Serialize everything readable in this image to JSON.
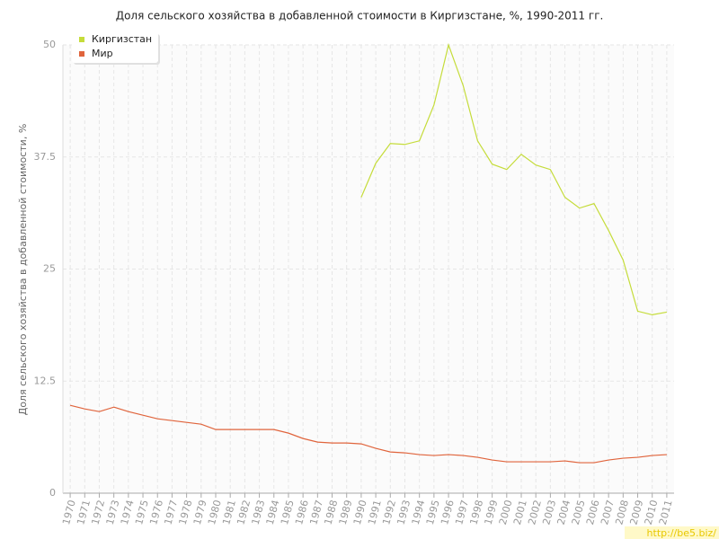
{
  "chart_data": {
    "type": "line",
    "title": "Доля сельского хозяйства в добавленной стоимости в Киргизстане, %, 1990-2011 гг.",
    "y_label": "Доля сельского хозяйства в добавленной стоимости, %",
    "watermark": "http://be5.biz/",
    "x": [
      1970,
      1971,
      1972,
      1973,
      1974,
      1975,
      1976,
      1977,
      1978,
      1979,
      1980,
      1981,
      1982,
      1983,
      1984,
      1985,
      1986,
      1987,
      1988,
      1989,
      1990,
      1991,
      1992,
      1993,
      1994,
      1995,
      1996,
      1997,
      1998,
      1999,
      2000,
      2001,
      2002,
      2003,
      2004,
      2005,
      2006,
      2007,
      2008,
      2009,
      2010,
      2011
    ],
    "xlim": [
      1969.5,
      2011.5
    ],
    "ylim": [
      0,
      50
    ],
    "yticks": [
      0,
      12.5,
      25,
      37.5,
      50
    ],
    "grid": true,
    "legend": "top-left",
    "series": [
      {
        "name": "Киргизстан",
        "color": "#c5dc3a",
        "values": [
          null,
          null,
          null,
          null,
          null,
          null,
          null,
          null,
          null,
          null,
          null,
          null,
          null,
          null,
          null,
          null,
          null,
          null,
          null,
          null,
          33.0,
          36.8,
          39.0,
          38.9,
          39.3,
          43.3,
          50.0,
          45.5,
          39.3,
          36.7,
          36.1,
          37.8,
          36.6,
          36.1,
          33.0,
          31.8,
          32.3,
          29.3,
          26.0,
          20.3,
          19.9,
          20.2
        ]
      },
      {
        "name": "Мир",
        "color": "#e0643c",
        "values": [
          9.8,
          9.4,
          9.1,
          9.6,
          9.1,
          8.7,
          8.3,
          8.1,
          7.9,
          7.7,
          7.1,
          7.1,
          7.1,
          7.1,
          7.1,
          6.7,
          6.1,
          5.7,
          5.6,
          5.6,
          5.5,
          5.0,
          4.6,
          4.5,
          4.3,
          4.2,
          4.3,
          4.2,
          4.0,
          3.7,
          3.5,
          3.5,
          3.5,
          3.5,
          3.6,
          3.4,
          3.4,
          3.7,
          3.9,
          4.0,
          4.2,
          4.3
        ]
      }
    ]
  }
}
